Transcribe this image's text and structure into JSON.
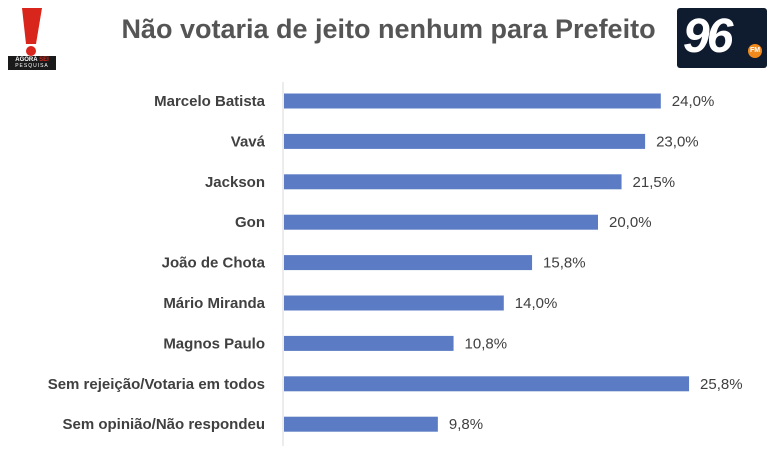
{
  "header": {
    "title": "Não votaria de jeito nenhum para Prefeito",
    "logo_left": {
      "line1_a": "AGORA",
      "line1_b": "SEI",
      "line2": "PESQUISA"
    },
    "logo_right": {
      "text": "96",
      "badge": "FM"
    }
  },
  "colors": {
    "bar": "#5b7cc4",
    "axis": "#d9d9d9",
    "title": "#555555",
    "logo_red": "#d9261c"
  },
  "chart_data": {
    "type": "bar",
    "orientation": "horizontal",
    "title": "Não votaria de jeito nenhum para Prefeito",
    "categories": [
      "Marcelo Batista",
      "Vavá",
      "Jackson",
      "Gon",
      "João de Chota",
      "Mário Miranda",
      "Magnos Paulo",
      "Sem rejeição/Votaria em todos",
      "Sem opinião/Não respondeu"
    ],
    "values": [
      24.0,
      23.0,
      21.5,
      20.0,
      15.8,
      14.0,
      10.8,
      25.8,
      9.8
    ],
    "value_labels": [
      "24,0%",
      "23,0%",
      "21,5%",
      "20,0%",
      "15,8%",
      "14,0%",
      "10,8%",
      "25,8%",
      "9,8%"
    ],
    "xlim": [
      0,
      30
    ],
    "grid": false,
    "legend": "none"
  }
}
